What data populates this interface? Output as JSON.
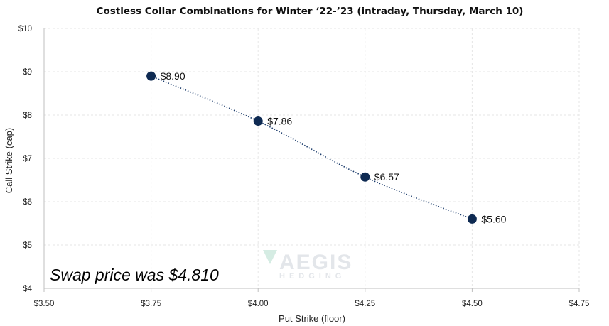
{
  "chart_data": {
    "type": "scatter",
    "title": "Costless Collar Combinations for Winter ‘22-’23 (intraday, Thursday, March 10)",
    "xlabel": "Put Strike (floor)",
    "ylabel": "Call Strike (cap)",
    "xlim": [
      3.5,
      4.75
    ],
    "ylim": [
      4,
      10
    ],
    "x_ticks": [
      3.5,
      3.75,
      4.0,
      4.25,
      4.5,
      4.75
    ],
    "x_tick_labels": [
      "$3.50",
      "$3.75",
      "$4.00",
      "$4.25",
      "$4.50",
      "$4.75"
    ],
    "y_ticks": [
      4,
      5,
      6,
      7,
      8,
      9,
      10
    ],
    "y_tick_labels": [
      "$4",
      "$5",
      "$6",
      "$7",
      "$8",
      "$9",
      "$10"
    ],
    "points": [
      {
        "x": 3.75,
        "y": 8.9,
        "label": "$8.90"
      },
      {
        "x": 4.0,
        "y": 7.86,
        "label": "$7.86"
      },
      {
        "x": 4.25,
        "y": 6.57,
        "label": "$6.57"
      },
      {
        "x": 4.5,
        "y": 5.6,
        "label": "$5.60"
      }
    ],
    "trendline": "smooth dotted",
    "grid": true,
    "annotation": "Swap price was $4.810",
    "colors": {
      "marker": "#0e2a52",
      "line": "#1f3f6e",
      "grid": "#e6e6e6",
      "axis": "#bfbfbf"
    }
  },
  "watermark": {
    "main": "AEGIS",
    "sub": "HEDGING"
  }
}
